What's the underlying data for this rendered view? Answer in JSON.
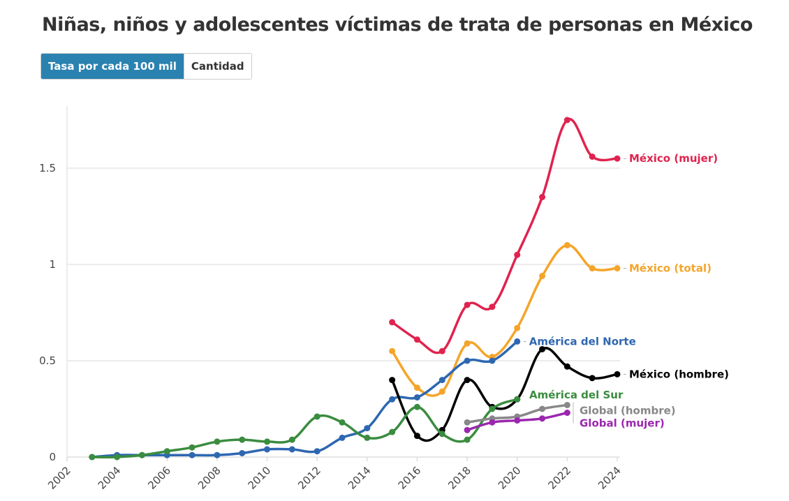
{
  "title": "Niñas, niños y adolescentes víctimas de trata de personas en México",
  "toggle": {
    "options": [
      "Tasa por cada 100 mil",
      "Cantidad"
    ],
    "selected": "Tasa por cada 100 mil"
  },
  "chart_data": {
    "type": "line",
    "title": "Niñas, niños y adolescentes víctimas de trata de personas en México",
    "xlabel": "",
    "ylabel": "",
    "xlim": [
      2002,
      2024
    ],
    "ylim": [
      0,
      1.8
    ],
    "x_ticks": [
      "2002",
      "2004",
      "2006",
      "2008",
      "2010",
      "2012",
      "2014",
      "2016",
      "2018",
      "2020",
      "2022",
      "2024"
    ],
    "y_ticks": [
      "0",
      "0.5",
      "1",
      "1.5"
    ],
    "grid": "horizontal",
    "legend": "direct labels at line ends (right)",
    "series": [
      {
        "name": "México (mujer)",
        "color": "#e0234e",
        "x": [
          2015,
          2016,
          2017,
          2018,
          2019,
          2020,
          2021,
          2022,
          2023,
          2024
        ],
        "values": [
          0.7,
          0.61,
          0.55,
          0.79,
          0.78,
          1.05,
          1.35,
          1.75,
          1.56,
          1.55
        ]
      },
      {
        "name": "México (total)",
        "color": "#f4a52a",
        "x": [
          2015,
          2016,
          2017,
          2018,
          2019,
          2020,
          2021,
          2022,
          2023,
          2024
        ],
        "values": [
          0.55,
          0.36,
          0.34,
          0.59,
          0.52,
          0.67,
          0.94,
          1.1,
          0.98,
          0.98
        ]
      },
      {
        "name": "América del Norte",
        "color": "#2e67b1",
        "x": [
          2003,
          2004,
          2005,
          2006,
          2007,
          2008,
          2009,
          2010,
          2011,
          2012,
          2013,
          2014,
          2015,
          2016,
          2017,
          2018,
          2019,
          2020
        ],
        "values": [
          0.0,
          0.01,
          0.01,
          0.01,
          0.01,
          0.01,
          0.02,
          0.04,
          0.04,
          0.03,
          0.1,
          0.15,
          0.3,
          0.31,
          0.4,
          0.5,
          0.5,
          0.6
        ]
      },
      {
        "name": "México (hombre)",
        "color": "#000000",
        "x": [
          2015,
          2016,
          2017,
          2018,
          2019,
          2020,
          2021,
          2022,
          2023,
          2024
        ],
        "values": [
          0.4,
          0.11,
          0.14,
          0.4,
          0.26,
          0.3,
          0.56,
          0.47,
          0.41,
          0.43
        ]
      },
      {
        "name": "América del Sur",
        "color": "#3a8c3f",
        "x": [
          2003,
          2004,
          2005,
          2006,
          2007,
          2008,
          2009,
          2010,
          2011,
          2012,
          2013,
          2014,
          2015,
          2016,
          2017,
          2018,
          2019,
          2020
        ],
        "values": [
          0.0,
          0.0,
          0.01,
          0.03,
          0.05,
          0.08,
          0.09,
          0.08,
          0.09,
          0.21,
          0.18,
          0.1,
          0.13,
          0.26,
          0.12,
          0.09,
          0.25,
          0.3
        ]
      },
      {
        "name": "Global (hombre)",
        "color": "#888888",
        "x": [
          2018,
          2019,
          2020,
          2021,
          2022
        ],
        "values": [
          0.18,
          0.2,
          0.21,
          0.25,
          0.27
        ]
      },
      {
        "name": "Global (mujer)",
        "color": "#9b27af",
        "x": [
          2018,
          2019,
          2020,
          2021,
          2022
        ],
        "values": [
          0.14,
          0.18,
          0.19,
          0.2,
          0.23
        ]
      }
    ]
  }
}
